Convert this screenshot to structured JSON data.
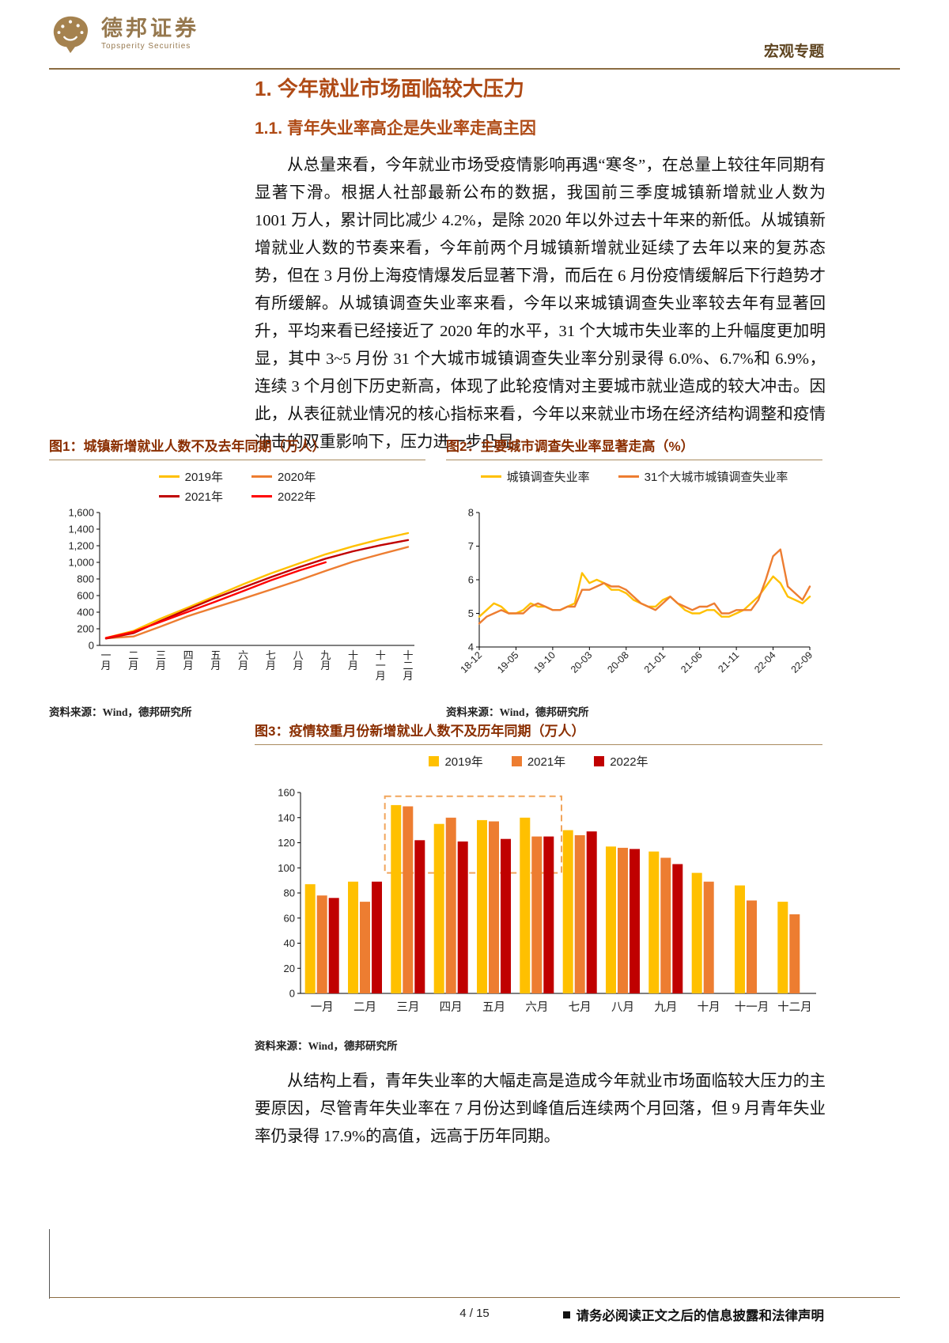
{
  "brand": {
    "logo_cn": "德邦证券",
    "logo_en": "Topsperity Securities"
  },
  "header": {
    "topic": "宏观专题"
  },
  "headings": {
    "h1": "1. 今年就业市场面临较大压力",
    "h2": "1.1. 青年失业率高企是失业率走高主因"
  },
  "body": {
    "p1": "从总量来看，今年就业市场受疫情影响再遇“寒冬”，在总量上较往年同期有显著下滑。根据人社部最新公布的数据，我国前三季度城镇新增就业人数为 1001 万人，累计同比减少 4.2%，是除 2020 年以外过去十年来的新低。从城镇新增就业人数的节奏来看，今年前两个月城镇新增就业延续了去年以来的复苏态势，但在 3 月份上海疫情爆发后显著下滑，而后在 6 月份疫情缓解后下行趋势才有所缓解。从城镇调查失业率来看，今年以来城镇调查失业率较去年有显著回升，平均来看已经接近了 2020 年的水平，31 个大城市失业率的上升幅度更加明显，其中 3~5 月份 31 个大城市城镇调查失业率分别录得 6.0%、6.7%和 6.9%，连续 3 个月创下历史新高，体现了此轮疫情对主要城市就业造成的较大冲击。因此，从表征就业情况的核心指标来看，今年以来就业市场在经济结构调整和疫情冲击的双重影响下，压力进一步凸显。",
    "p2": "从结构上看，青年失业率的大幅走高是造成今年就业市场面临较大压力的主要原因，尽管青年失业率在 7 月份达到峰值后连续两个月回落，但 9 月青年失业率仍录得 17.9%的高值，远高于历年同期。"
  },
  "figures": {
    "fig1": {
      "title": "图1：城镇新增就业人数不及去年同期（万人）",
      "source": "资料来源：Wind，德邦研究所"
    },
    "fig2": {
      "title": "图2：主要城市调查失业率显著走高（%）",
      "source": "资料来源：Wind，德邦研究所"
    },
    "fig3": {
      "title": "图3：疫情较重月份新增就业人数不及历年同期（万人）",
      "source": "资料来源：Wind，德邦研究所"
    }
  },
  "footer": {
    "page_number": "4 / 15",
    "disclaimer": "请务必阅读正文之后的信息披露和法律声明"
  },
  "chart_data": [
    {
      "id": "fig1",
      "type": "line",
      "title": "城镇新增就业人数不及去年同期（万人）",
      "categories": [
        "一月",
        "二月",
        "三月",
        "四月",
        "五月",
        "六月",
        "七月",
        "八月",
        "九月",
        "十月",
        "十一月",
        "十二月"
      ],
      "series": [
        {
          "name": "2019年",
          "color": "#FFC000",
          "values": [
            90,
            174,
            324,
            459,
            597,
            737,
            867,
            984,
            1097,
            1193,
            1279,
            1352
          ]
        },
        {
          "name": "2020年",
          "color": "#ED7D31",
          "values": [
            86,
            108,
            229,
            354,
            460,
            564,
            671,
            781,
            898,
            1009,
            1099,
            1186
          ]
        },
        {
          "name": "2021年",
          "color": "#C00000",
          "values": [
            83,
            148,
            297,
            437,
            574,
            698,
            822,
            938,
            1045,
            1133,
            1207,
            1269
          ]
        },
        {
          "name": "2022年",
          "color": "#FF0000",
          "values": [
            90,
            163,
            285,
            406,
            529,
            654,
            783,
            898,
            1001,
            null,
            null,
            null
          ]
        }
      ],
      "ylim": [
        0,
        1600
      ],
      "ystep": 200,
      "grid": false,
      "legend_position": "top"
    },
    {
      "id": "fig2",
      "type": "line",
      "title": "主要城市调查失业率显著走高（%）",
      "x_tick_labels": [
        "18-12",
        "19-05",
        "19-10",
        "20-03",
        "20-08",
        "21-01",
        "21-06",
        "21-11",
        "22-04",
        "22-09"
      ],
      "x_tick_every": 5,
      "series": [
        {
          "name": "城镇调查失业率",
          "color": "#FFC000",
          "values": [
            4.9,
            5.1,
            5.3,
            5.2,
            5.0,
            5.0,
            5.1,
            5.3,
            5.2,
            5.2,
            5.1,
            5.1,
            5.2,
            5.3,
            6.2,
            5.9,
            6.0,
            5.9,
            5.7,
            5.7,
            5.6,
            5.4,
            5.3,
            5.2,
            5.2,
            5.4,
            5.5,
            5.3,
            5.1,
            5.0,
            5.0,
            5.1,
            5.1,
            4.9,
            4.9,
            5.0,
            5.1,
            5.3,
            5.5,
            5.8,
            6.1,
            5.9,
            5.5,
            5.4,
            5.3,
            5.5
          ]
        },
        {
          "name": "31个大城市城镇调查失业率",
          "color": "#ED7D31",
          "values": [
            4.7,
            4.9,
            5.0,
            5.1,
            5.0,
            5.0,
            5.0,
            5.2,
            5.3,
            5.2,
            5.1,
            5.1,
            5.2,
            5.2,
            5.7,
            5.7,
            5.8,
            5.9,
            5.8,
            5.8,
            5.7,
            5.5,
            5.3,
            5.2,
            5.1,
            5.3,
            5.5,
            5.3,
            5.2,
            5.1,
            5.2,
            5.2,
            5.3,
            5.0,
            5.0,
            5.1,
            5.1,
            5.1,
            5.4,
            6.0,
            6.7,
            6.9,
            5.8,
            5.6,
            5.4,
            5.8
          ]
        }
      ],
      "ylim": [
        4,
        8
      ],
      "ystep": 1,
      "grid": false,
      "legend_position": "top"
    },
    {
      "id": "fig3",
      "type": "bar",
      "title": "疫情较重月份新增就业人数不及历年同期（万人）",
      "categories": [
        "一月",
        "二月",
        "三月",
        "四月",
        "五月",
        "六月",
        "七月",
        "八月",
        "九月",
        "十月",
        "十一月",
        "十二月"
      ],
      "series": [
        {
          "name": "2019年",
          "color": "#FFC000",
          "values": [
            87,
            89,
            150,
            135,
            138,
            140,
            130,
            117,
            113,
            96,
            86,
            73
          ]
        },
        {
          "name": "2021年",
          "color": "#ED7D31",
          "values": [
            78,
            73,
            149,
            140,
            137,
            125,
            126,
            116,
            108,
            89,
            74,
            63
          ]
        },
        {
          "name": "2022年",
          "color": "#C00000",
          "values": [
            76,
            89,
            122,
            121,
            123,
            125,
            129,
            115,
            103,
            null,
            null,
            null
          ]
        }
      ],
      "ylim": [
        0,
        160
      ],
      "ystep": 20,
      "grid": false,
      "legend_position": "top",
      "highlight_box": {
        "from_group": 2,
        "to_group": 5,
        "value_top": 157,
        "value_bottom": 96,
        "color": "#F1A55B"
      }
    }
  ]
}
